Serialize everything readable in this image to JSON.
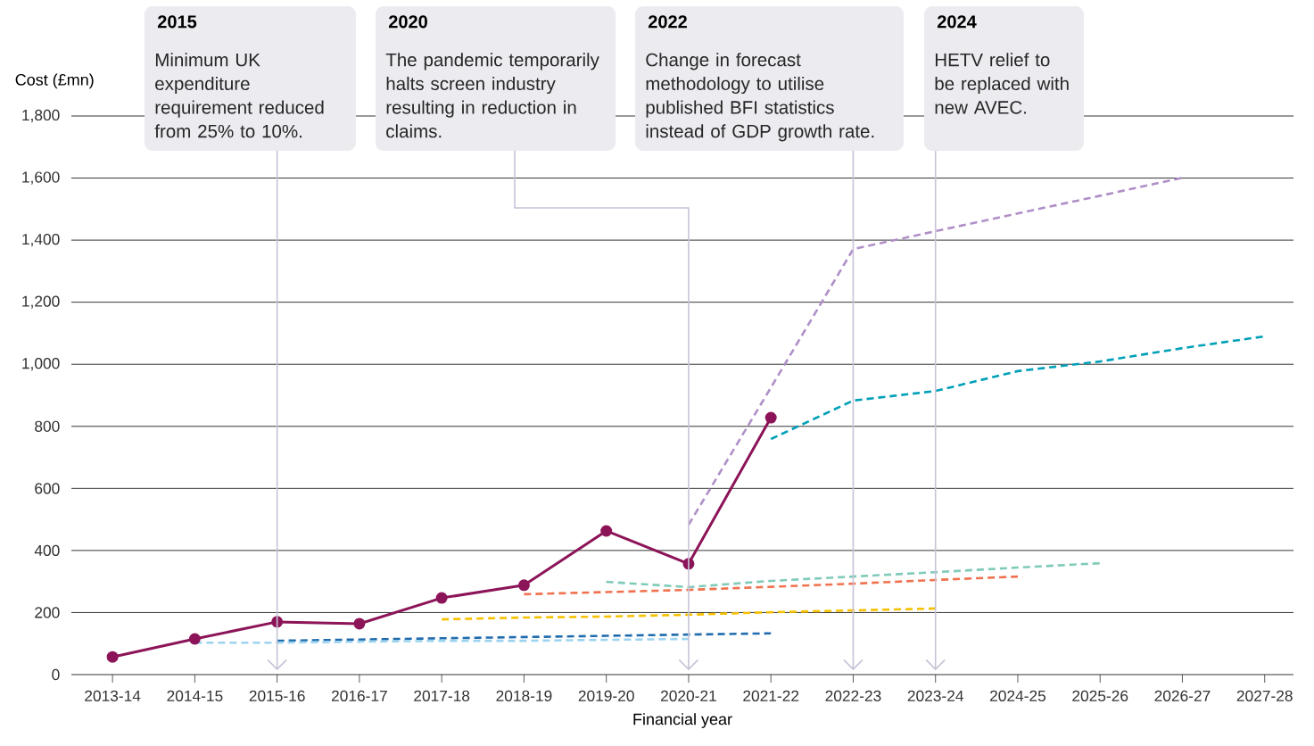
{
  "chart_data": {
    "type": "line",
    "xlabel": "Financial year",
    "ylabel": "Cost (£mn)",
    "categories": [
      "2013-14",
      "2014-15",
      "2015-16",
      "2016-17",
      "2017-18",
      "2018-19",
      "2019-20",
      "2020-21",
      "2021-22",
      "2022-23",
      "2023-24",
      "2024-25",
      "2025-26",
      "2026-27",
      "2027-28"
    ],
    "ylim": [
      0,
      1800
    ],
    "yticks": [
      0,
      200,
      400,
      600,
      800,
      {
        "value": 1000,
        "label": "1,000"
      },
      {
        "value": 1200,
        "label": "1,200"
      },
      {
        "value": 1400,
        "label": "1,400"
      },
      {
        "value": 1600,
        "label": "1,600"
      },
      {
        "value": 1800,
        "label": "1,800"
      }
    ],
    "grid": "y",
    "series": [
      {
        "color": "#b08fc7",
        "line_style": "dashed",
        "marker": "none",
        "values": [
          null,
          null,
          null,
          null,
          null,
          null,
          null,
          483,
          925,
          1371,
          1429,
          1486,
          1543,
          1601,
          null
        ]
      },
      {
        "color": "#00a0b8",
        "line_style": "dashed",
        "marker": "none",
        "values": [
          null,
          null,
          null,
          null,
          null,
          null,
          null,
          null,
          759,
          883,
          914,
          978,
          1009,
          1052,
          1090
        ]
      },
      {
        "color": "#7fcab9",
        "line_style": "dashed",
        "marker": "none",
        "values": [
          null,
          null,
          null,
          null,
          null,
          null,
          299,
          282,
          302,
          316,
          330,
          345,
          359,
          null,
          null
        ]
      },
      {
        "color": "#f0714e",
        "line_style": "dashed",
        "marker": "none",
        "values": [
          null,
          null,
          null,
          null,
          null,
          259,
          266,
          273,
          283,
          293,
          305,
          316,
          null,
          null,
          null
        ]
      },
      {
        "color": "#f7c100",
        "line_style": "dashed",
        "marker": "none",
        "values": [
          null,
          null,
          null,
          null,
          178,
          184,
          187,
          193,
          201,
          207,
          213,
          null,
          null,
          null,
          null
        ]
      },
      {
        "color": "#1f6bad",
        "line_style": "dashed",
        "marker": "none",
        "values": [
          null,
          null,
          109,
          113,
          117,
          121,
          125,
          129,
          133,
          null,
          null,
          null,
          null,
          null,
          null
        ]
      },
      {
        "color": "#9dd3ef",
        "line_style": "dashed",
        "marker": "none",
        "values": [
          null,
          103,
          103,
          106,
          109,
          109,
          112,
          115,
          null,
          null,
          null,
          null,
          null,
          null,
          null
        ]
      },
      {
        "color": "#8c1458",
        "line_style": "solid",
        "marker": "circle",
        "values": [
          57,
          115,
          170,
          164,
          247,
          288,
          463,
          357,
          828,
          null,
          null,
          null,
          null,
          null,
          null
        ]
      }
    ],
    "annotations": [
      "2015",
      "Minimum UK expenditure requirement reduced from 25% to 10%.",
      "2020",
      "The pandemic temporarily halts screen industry resulting in reduction in claims.",
      "2022",
      "Change in forecast methodology to utilise published BFI statistics instead of GDP growth rate.",
      "2024",
      "HETV relief to be replaced with new AVEC."
    ]
  }
}
